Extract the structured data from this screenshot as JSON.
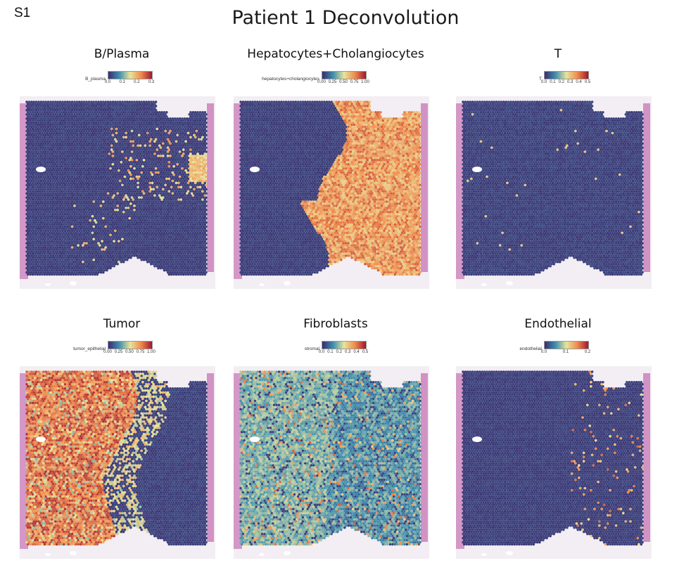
{
  "figure": {
    "label": "S1",
    "title": "Patient 1 Deconvolution"
  },
  "panels": [
    {
      "title": "B/Plasma",
      "legend_name": "B_plasma",
      "ticks": [
        "0.0",
        "0.1",
        "0.2",
        "0.3"
      ],
      "pattern": "bplasma",
      "colormap": "spectral-reversed"
    },
    {
      "title": "Hepatocytes+Cholangiocytes",
      "legend_name": "hepatocytes+cholangiocytes",
      "ticks": [
        "0.00",
        "0.25",
        "0.50",
        "0.75",
        "1.00"
      ],
      "pattern": "hepato",
      "colormap": "spectral-reversed"
    },
    {
      "title": "T",
      "legend_name": "T",
      "ticks": [
        "0.0",
        "0.1",
        "0.2",
        "0.3",
        "0.4",
        "0.5"
      ],
      "pattern": "tcell",
      "colormap": "spectral-reversed"
    },
    {
      "title": "Tumor",
      "legend_name": "tumor_epithelial",
      "ticks": [
        "0.00",
        "0.25",
        "0.50",
        "0.75",
        "1.00"
      ],
      "pattern": "tumor",
      "colormap": "spectral-reversed"
    },
    {
      "title": "Fibroblasts",
      "legend_name": "stromal",
      "ticks": [
        "0.0",
        "0.1",
        "0.2",
        "0.3",
        "0.4",
        "0.5"
      ],
      "pattern": "fibro",
      "colormap": "spectral-reversed"
    },
    {
      "title": "Endothelial",
      "legend_name": "endothelial",
      "ticks": [
        "0.0",
        "0.1",
        "0.2"
      ],
      "pattern": "endo",
      "colormap": "spectral-reversed"
    }
  ],
  "colors": {
    "low": "#3b2d6e",
    "mid_low": "#3e8fb0",
    "mid": "#e8e49a",
    "mid_high": "#f08a4b",
    "high": "#9e1730",
    "tissue_stain": "#c87bb8"
  }
}
